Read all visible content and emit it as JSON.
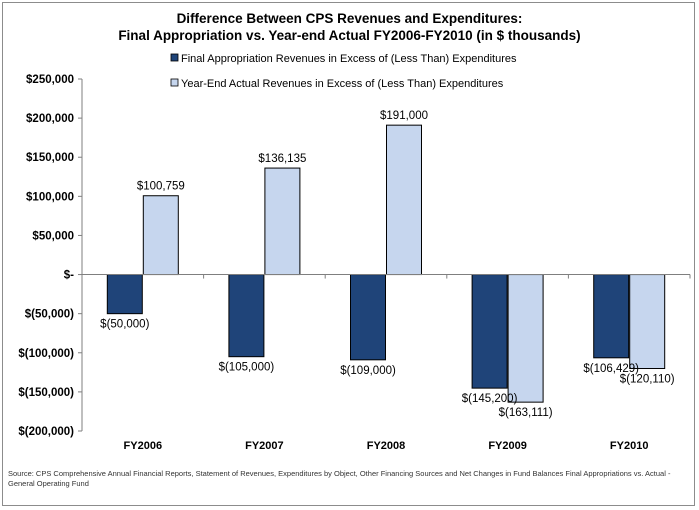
{
  "chart_data": {
    "type": "bar",
    "title_line1": "Difference Between CPS Revenues and Expenditures:",
    "title_line2": "Final Appropriation vs. Year-end  Actual  FY2006-FY2010 (in $ thousands)",
    "categories": [
      "FY2006",
      "FY2007",
      "FY2008",
      "FY2009",
      "FY2010"
    ],
    "series": [
      {
        "name": "Final Appropriation Revenues in Excess of (Less Than) Expenditures",
        "color": "#1f4479",
        "values": [
          -50000,
          -105000,
          -109000,
          -145200,
          -106429
        ],
        "labels": [
          "$(50,000)",
          "$(105,000)",
          "$(109,000)",
          "$(145,200)",
          "$(106,429)"
        ]
      },
      {
        "name": "Year-End Actual Revenues in Excess of (Less Than) Expenditures",
        "color": "#c6d6ee",
        "values": [
          100759,
          136135,
          191000,
          -163111,
          -120110
        ],
        "labels": [
          "$100,759",
          "$136,135",
          "$191,000",
          "$(163,111)",
          "$(120,110)"
        ]
      }
    ],
    "ylim": [
      -200000,
      250000
    ],
    "yticks": [
      250000,
      200000,
      150000,
      100000,
      50000,
      0,
      -50000,
      -100000,
      -150000,
      -200000
    ],
    "ytick_labels": [
      "$250,000",
      "$200,000",
      "$150,000",
      "$100,000",
      "$50,000",
      "$-",
      "$(50,000)",
      "$(100,000)",
      "$(150,000)",
      "$(200,000)"
    ],
    "legend_position": "top-right",
    "grid": false
  },
  "source_note": "Source: CPS Comprehensive Annual Financial Reports, Statement of Revenues, Expenditures by Object, Other Financing Sources and Net Changes in Fund Balances Final Appropriations vs. Actual - General Operating Fund"
}
